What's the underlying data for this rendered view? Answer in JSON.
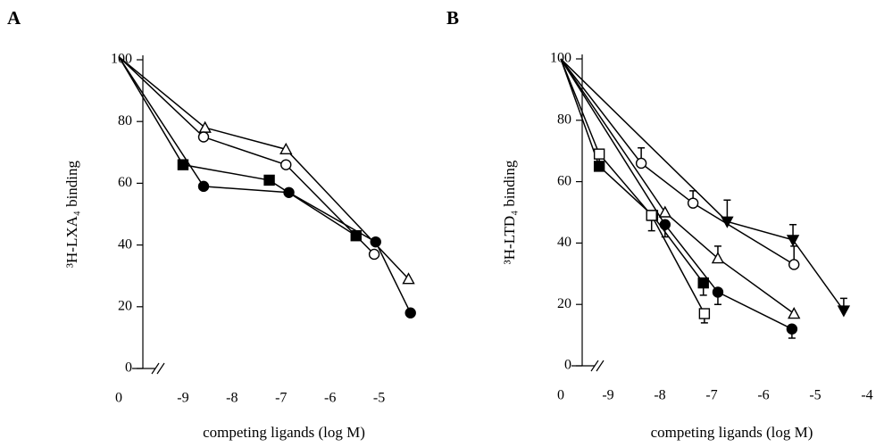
{
  "chart_data": [
    {
      "type": "line",
      "panel_label": "A",
      "y_label": "³H-LXA₄ binding",
      "x_label": "competing ligands (log M)",
      "ylim": [
        0,
        100
      ],
      "yticks": [
        0,
        20,
        40,
        60,
        80,
        100
      ],
      "xlim": [
        -9.6,
        -4.3
      ],
      "xticks": [
        0,
        -9,
        -8,
        -7,
        -6,
        -5
      ],
      "axis_break": true,
      "series": [
        {
          "marker": "triangle-open",
          "color": "#000",
          "x": [
            0,
            -8.55,
            -6.9,
            -4.4
          ],
          "values": [
            101,
            78,
            71,
            29
          ]
        },
        {
          "marker": "circle-open",
          "color": "#000",
          "x": [
            0,
            -8.58,
            -6.9,
            -5.1
          ],
          "values": [
            101,
            75,
            66,
            37
          ]
        },
        {
          "marker": "square-filled",
          "color": "#000",
          "x": [
            0,
            -9.0,
            -7.24,
            -5.47
          ],
          "values": [
            101,
            66,
            61,
            43
          ]
        },
        {
          "marker": "circle-filled",
          "color": "#000",
          "x": [
            0,
            -8.58,
            -6.84,
            -5.07,
            -4.36
          ],
          "values": [
            101,
            59,
            57,
            41,
            18
          ]
        }
      ]
    },
    {
      "type": "line",
      "panel_label": "B",
      "y_label": "³H-LTD₄ binding",
      "x_label": "competing ligands (log M)",
      "ylim": [
        0,
        100
      ],
      "yticks": [
        0,
        20,
        40,
        60,
        80,
        100
      ],
      "xlim": [
        -9.5,
        -4
      ],
      "xticks": [
        0,
        -9,
        -8,
        -7,
        -6,
        -5,
        -4
      ],
      "axis_break": true,
      "series": [
        {
          "marker": "circle-open",
          "color": "#000",
          "error_direction": "up",
          "x": [
            0,
            -8.36,
            -7.36,
            -5.41
          ],
          "values": [
            100,
            66,
            53,
            33
          ],
          "errors": [
            null,
            5,
            4,
            6
          ]
        },
        {
          "marker": "triangle-down-filled",
          "color": "#000",
          "error_direction": "up",
          "x": [
            0,
            -6.7,
            -5.43,
            -4.45
          ],
          "values": [
            100,
            47,
            41,
            18
          ],
          "errors": [
            null,
            7,
            5,
            4
          ]
        },
        {
          "marker": "triangle-open",
          "color": "#000",
          "error_direction": "up",
          "x": [
            0,
            -7.9,
            -6.88,
            -5.41
          ],
          "values": [
            100,
            50,
            35,
            17
          ],
          "errors": [
            null,
            null,
            4,
            null
          ]
        },
        {
          "marker": "circle-filled",
          "color": "#000",
          "error_direction": "down",
          "x": [
            0,
            -7.9,
            -6.88,
            -5.45
          ],
          "values": [
            100,
            46,
            24,
            12
          ],
          "errors": [
            null,
            4,
            4,
            3
          ]
        },
        {
          "marker": "square-filled",
          "color": "#000",
          "error_direction": "down",
          "x": [
            0,
            -9.17,
            -8.14,
            -7.16
          ],
          "values": [
            100,
            65,
            49,
            27
          ],
          "errors": [
            null,
            null,
            null,
            4
          ]
        },
        {
          "marker": "square-open",
          "color": "#000",
          "error_direction": "down",
          "x": [
            0,
            -9.17,
            -8.16,
            -7.14
          ],
          "values": [
            100,
            69,
            49,
            17
          ],
          "errors": [
            null,
            3,
            5,
            3
          ]
        }
      ]
    }
  ]
}
